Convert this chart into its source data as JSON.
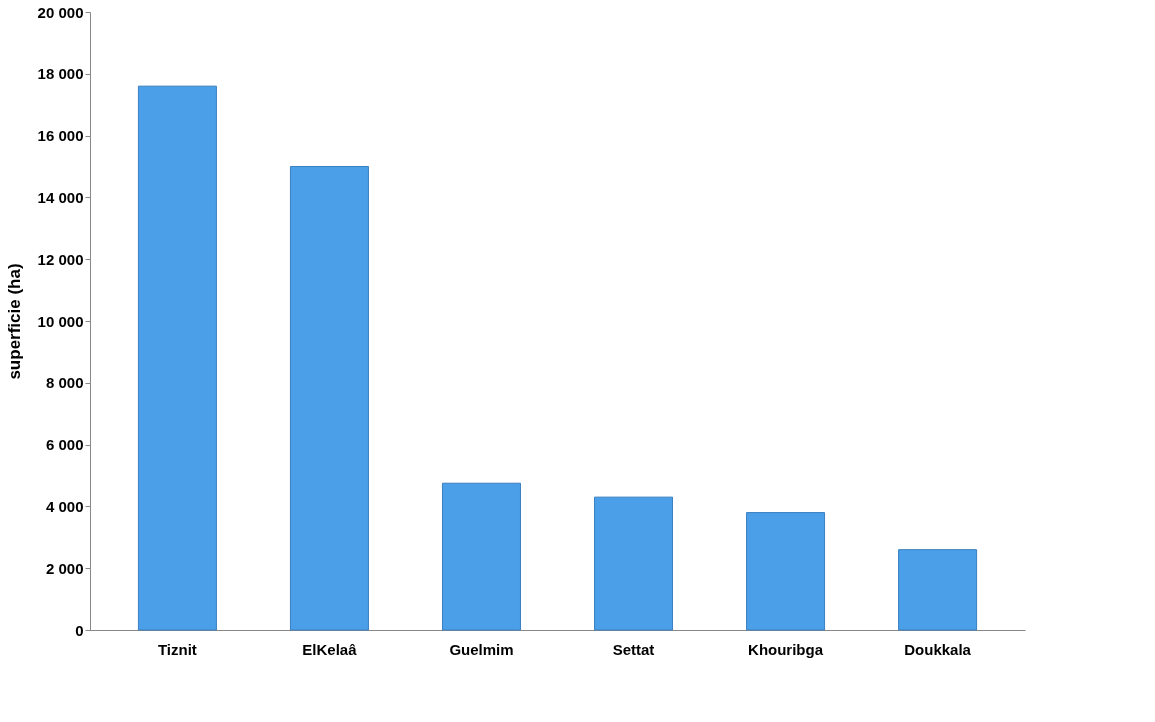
{
  "chart_data": {
    "type": "bar",
    "ylabel": "superficie (ha)",
    "categories": [
      "Tiznit",
      "ElKelaâ",
      "Guelmim",
      "Settat",
      "Khouribga",
      "Doukkala"
    ],
    "values": [
      17600,
      15000,
      4750,
      4300,
      3800,
      2600
    ],
    "color": "#4a9fe8",
    "ylim": [
      0,
      20000
    ],
    "yticks": [
      {
        "value": 0,
        "label": "0"
      },
      {
        "value": 2000,
        "label": "2 000"
      },
      {
        "value": 4000,
        "label": "4 000"
      },
      {
        "value": 6000,
        "label": "6 000"
      },
      {
        "value": 8000,
        "label": "8 000"
      },
      {
        "value": 10000,
        "label": "10 000"
      },
      {
        "value": 12000,
        "label": "12 000"
      },
      {
        "value": 14000,
        "label": "14 000"
      },
      {
        "value": 16000,
        "label": "16 000"
      },
      {
        "value": 18000,
        "label": "18 000"
      },
      {
        "value": 20000,
        "label": "20 000"
      }
    ],
    "grid": false
  }
}
